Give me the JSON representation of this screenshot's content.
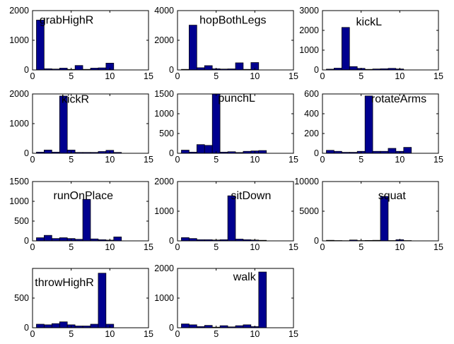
{
  "chart_data": [
    {
      "type": "bar",
      "title": "grabHighR",
      "x": [
        1,
        2,
        3,
        4,
        5,
        6,
        7,
        8,
        9,
        10,
        11
      ],
      "values": [
        1680,
        40,
        30,
        60,
        20,
        150,
        20,
        60,
        70,
        230,
        0
      ],
      "xlim": [
        0,
        15
      ],
      "ylim": [
        0,
        2000
      ],
      "xticks": [
        0,
        5,
        10,
        15
      ],
      "yticks": [
        0,
        1000,
        2000
      ],
      "ytick_labels": [
        "0",
        "1000",
        "2000"
      ],
      "xtick_labels": [
        "0",
        "5",
        "10",
        "15"
      ],
      "grid": false
    },
    {
      "type": "bar",
      "title": "hopBothLegs",
      "x": [
        1,
        2,
        3,
        4,
        5,
        6,
        7,
        8,
        9,
        10,
        11
      ],
      "values": [
        40,
        3020,
        150,
        290,
        80,
        60,
        70,
        480,
        40,
        500,
        0
      ],
      "xlim": [
        0,
        15
      ],
      "ylim": [
        0,
        4000
      ],
      "xticks": [
        0,
        5,
        10,
        15
      ],
      "yticks": [
        0,
        2000,
        4000
      ],
      "ytick_labels": [
        "0",
        "2000",
        "4000"
      ],
      "xtick_labels": [
        "0",
        "5",
        "10",
        "15"
      ],
      "grid": false
    },
    {
      "type": "bar",
      "title": "kickL",
      "x": [
        1,
        2,
        3,
        4,
        5,
        6,
        7,
        8,
        9,
        10,
        11
      ],
      "values": [
        40,
        90,
        2150,
        170,
        80,
        30,
        50,
        60,
        80,
        50,
        0
      ],
      "xlim": [
        0,
        15
      ],
      "ylim": [
        0,
        3000
      ],
      "xticks": [
        0,
        5,
        10,
        15
      ],
      "yticks": [
        0,
        1000,
        2000,
        3000
      ],
      "ytick_labels": [
        "0",
        "1000",
        "2000",
        "3000"
      ],
      "xtick_labels": [
        "0",
        "5",
        "10",
        "15"
      ],
      "grid": false
    },
    {
      "type": "bar",
      "title": "kickR",
      "x": [
        1,
        2,
        3,
        4,
        5,
        6,
        7,
        8,
        9,
        10,
        11
      ],
      "values": [
        40,
        110,
        40,
        1930,
        110,
        30,
        30,
        30,
        60,
        100,
        30
      ],
      "xlim": [
        0,
        15
      ],
      "ylim": [
        0,
        2000
      ],
      "xticks": [
        0,
        5,
        10,
        15
      ],
      "yticks": [
        0,
        1000,
        2000
      ],
      "ytick_labels": [
        "0",
        "1000",
        "2000"
      ],
      "xtick_labels": [
        "0",
        "5",
        "10",
        "15"
      ],
      "grid": false
    },
    {
      "type": "bar",
      "title": "punchL",
      "x": [
        1,
        2,
        3,
        4,
        5,
        6,
        7,
        8,
        9,
        10,
        11
      ],
      "values": [
        80,
        30,
        220,
        200,
        1500,
        30,
        40,
        20,
        50,
        60,
        70
      ],
      "xlim": [
        0,
        15
      ],
      "ylim": [
        0,
        1500
      ],
      "xticks": [
        0,
        5,
        10,
        15
      ],
      "yticks": [
        0,
        500,
        1000,
        1500
      ],
      "ytick_labels": [
        "0",
        "500",
        "1000",
        "1500"
      ],
      "xtick_labels": [
        "0",
        "5",
        "10",
        "15"
      ],
      "grid": false
    },
    {
      "type": "bar",
      "title": "rotateArms",
      "x": [
        1,
        2,
        3,
        4,
        5,
        6,
        7,
        8,
        9,
        10,
        11
      ],
      "values": [
        30,
        20,
        10,
        10,
        20,
        580,
        20,
        20,
        50,
        20,
        60
      ],
      "xlim": [
        0,
        15
      ],
      "ylim": [
        0,
        600
      ],
      "xticks": [
        0,
        5,
        10,
        15
      ],
      "yticks": [
        0,
        200,
        400,
        600
      ],
      "ytick_labels": [
        "0",
        "200",
        "400",
        "600"
      ],
      "xtick_labels": [
        "0",
        "5",
        "10",
        "15"
      ],
      "grid": false
    },
    {
      "type": "bar",
      "title": "runOnPlace",
      "x": [
        1,
        2,
        3,
        4,
        5,
        6,
        7,
        8,
        9,
        10,
        11
      ],
      "values": [
        80,
        140,
        60,
        80,
        60,
        40,
        1050,
        50,
        30,
        20,
        100
      ],
      "xlim": [
        0,
        15
      ],
      "ylim": [
        0,
        1500
      ],
      "xticks": [
        0,
        5,
        10,
        15
      ],
      "yticks": [
        0,
        500,
        1000,
        1500
      ],
      "ytick_labels": [
        "0",
        "500",
        "1000",
        "1500"
      ],
      "xtick_labels": [
        "0",
        "5",
        "10",
        "15"
      ],
      "grid": false
    },
    {
      "type": "bar",
      "title": "sitDown",
      "x": [
        1,
        2,
        3,
        4,
        5,
        6,
        7,
        8,
        9,
        10,
        11
      ],
      "values": [
        110,
        80,
        40,
        40,
        30,
        40,
        1520,
        60,
        40,
        30,
        20
      ],
      "xlim": [
        0,
        15
      ],
      "ylim": [
        0,
        2000
      ],
      "xticks": [
        0,
        5,
        10,
        15
      ],
      "yticks": [
        0,
        1000,
        2000
      ],
      "ytick_labels": [
        "0",
        "1000",
        "2000"
      ],
      "xtick_labels": [
        "0",
        "5",
        "10",
        "15"
      ],
      "grid": false
    },
    {
      "type": "bar",
      "title": "squat",
      "x": [
        1,
        2,
        3,
        4,
        5,
        6,
        7,
        8,
        9,
        10,
        11
      ],
      "values": [
        100,
        60,
        40,
        150,
        60,
        80,
        100,
        7500,
        60,
        200,
        60
      ],
      "xlim": [
        0,
        15
      ],
      "ylim": [
        0,
        10000
      ],
      "xticks": [
        0,
        5,
        10,
        15
      ],
      "yticks": [
        0,
        5000,
        10000
      ],
      "ytick_labels": [
        "0",
        "5000",
        "10000"
      ],
      "xtick_labels": [
        "0",
        "5",
        "10",
        "15"
      ],
      "grid": false
    },
    {
      "type": "bar",
      "title": "throwHighR",
      "x": [
        1,
        2,
        3,
        4,
        5,
        6,
        7,
        8,
        9,
        10,
        11
      ],
      "values": [
        60,
        50,
        70,
        100,
        50,
        30,
        30,
        60,
        920,
        60,
        0
      ],
      "xlim": [
        0,
        15
      ],
      "ylim": [
        0,
        1000
      ],
      "xticks": [
        0,
        5,
        10,
        15
      ],
      "yticks": [
        0,
        500
      ],
      "ytick_labels": [
        "0",
        "500"
      ],
      "xtick_labels": [
        "0",
        "5",
        "10",
        "15"
      ],
      "grid": false
    },
    {
      "type": "bar",
      "title": "walk",
      "x": [
        1,
        2,
        3,
        4,
        5,
        6,
        7,
        8,
        9,
        10,
        11
      ],
      "values": [
        130,
        100,
        40,
        80,
        20,
        70,
        30,
        70,
        100,
        40,
        1880
      ],
      "xlim": [
        0,
        15
      ],
      "ylim": [
        0,
        2000
      ],
      "xticks": [
        0,
        5,
        10,
        15
      ],
      "yticks": [
        0,
        1000,
        2000
      ],
      "ytick_labels": [
        "0",
        "1000",
        "2000"
      ],
      "xtick_labels": [
        "0",
        "5",
        "10",
        "15"
      ],
      "grid": false
    }
  ],
  "colors": {
    "bar_fill": "#00008f",
    "bar_edge": "#000000",
    "axis": "#000000",
    "text": "#000000",
    "background": "#ffffff"
  }
}
